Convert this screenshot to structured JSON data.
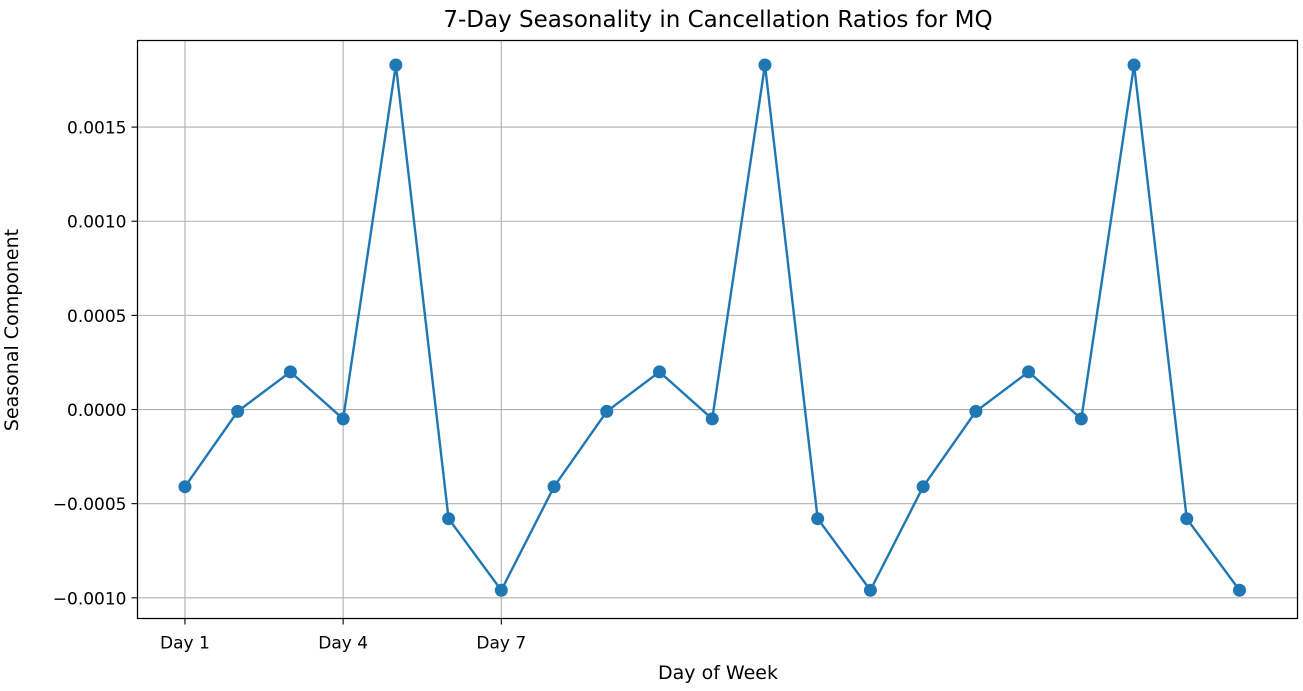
{
  "chart_data": {
    "type": "line",
    "title": "7-Day Seasonality in Cancellation Ratios for MQ",
    "xlabel": "Day of Week",
    "ylabel": "Seasonal Component",
    "x": [
      1,
      2,
      3,
      4,
      5,
      6,
      7,
      8,
      9,
      10,
      11,
      12,
      13,
      14,
      15,
      16,
      17,
      18,
      19,
      20,
      21
    ],
    "x_ticks": [
      1,
      4,
      7
    ],
    "x_tick_labels": [
      "Day 1",
      "Day 4",
      "Day 7"
    ],
    "xlim": [
      0.1,
      22.1
    ],
    "series": [
      {
        "color": "#1f77b4",
        "marker": "circle",
        "values": [
          -0.00041,
          -1e-05,
          0.0002,
          -5e-05,
          0.00183,
          -0.00058,
          -0.00096,
          -0.00041,
          -1e-05,
          0.0002,
          -5e-05,
          0.00183,
          -0.00058,
          -0.00096,
          -0.00041,
          -1e-05,
          0.0002,
          -5e-05,
          0.00183,
          -0.00058,
          -0.00096
        ]
      }
    ],
    "y_ticks": [
      -0.001,
      -0.0005,
      0.0,
      0.0005,
      0.001,
      0.0015
    ],
    "y_tick_labels": [
      "−0.0010",
      "−0.0005",
      "0.0000",
      "0.0005",
      "0.0010",
      "0.0015"
    ],
    "ylim": [
      -0.00111,
      0.00196
    ],
    "grid": true,
    "grid_color": "#b0b0b0"
  }
}
